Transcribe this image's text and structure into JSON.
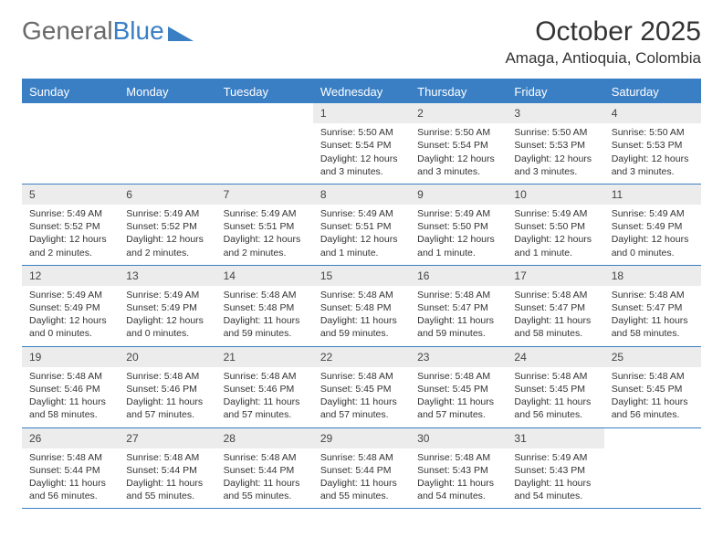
{
  "logo": {
    "text1": "General",
    "text2": "Blue"
  },
  "title": "October 2025",
  "location": "Amaga, Antioquia, Colombia",
  "colors": {
    "accent": "#3a7fc4",
    "header_bg": "#3a7fc4",
    "daynum_bg": "#ececec",
    "text": "#333333",
    "logo_gray": "#6a6a6a"
  },
  "day_names": [
    "Sunday",
    "Monday",
    "Tuesday",
    "Wednesday",
    "Thursday",
    "Friday",
    "Saturday"
  ],
  "weeks": [
    [
      null,
      null,
      null,
      {
        "n": "1",
        "sr": "5:50 AM",
        "ss": "5:54 PM",
        "dl": "12 hours and 3 minutes."
      },
      {
        "n": "2",
        "sr": "5:50 AM",
        "ss": "5:54 PM",
        "dl": "12 hours and 3 minutes."
      },
      {
        "n": "3",
        "sr": "5:50 AM",
        "ss": "5:53 PM",
        "dl": "12 hours and 3 minutes."
      },
      {
        "n": "4",
        "sr": "5:50 AM",
        "ss": "5:53 PM",
        "dl": "12 hours and 3 minutes."
      }
    ],
    [
      {
        "n": "5",
        "sr": "5:49 AM",
        "ss": "5:52 PM",
        "dl": "12 hours and 2 minutes."
      },
      {
        "n": "6",
        "sr": "5:49 AM",
        "ss": "5:52 PM",
        "dl": "12 hours and 2 minutes."
      },
      {
        "n": "7",
        "sr": "5:49 AM",
        "ss": "5:51 PM",
        "dl": "12 hours and 2 minutes."
      },
      {
        "n": "8",
        "sr": "5:49 AM",
        "ss": "5:51 PM",
        "dl": "12 hours and 1 minute."
      },
      {
        "n": "9",
        "sr": "5:49 AM",
        "ss": "5:50 PM",
        "dl": "12 hours and 1 minute."
      },
      {
        "n": "10",
        "sr": "5:49 AM",
        "ss": "5:50 PM",
        "dl": "12 hours and 1 minute."
      },
      {
        "n": "11",
        "sr": "5:49 AM",
        "ss": "5:49 PM",
        "dl": "12 hours and 0 minutes."
      }
    ],
    [
      {
        "n": "12",
        "sr": "5:49 AM",
        "ss": "5:49 PM",
        "dl": "12 hours and 0 minutes."
      },
      {
        "n": "13",
        "sr": "5:49 AM",
        "ss": "5:49 PM",
        "dl": "12 hours and 0 minutes."
      },
      {
        "n": "14",
        "sr": "5:48 AM",
        "ss": "5:48 PM",
        "dl": "11 hours and 59 minutes."
      },
      {
        "n": "15",
        "sr": "5:48 AM",
        "ss": "5:48 PM",
        "dl": "11 hours and 59 minutes."
      },
      {
        "n": "16",
        "sr": "5:48 AM",
        "ss": "5:47 PM",
        "dl": "11 hours and 59 minutes."
      },
      {
        "n": "17",
        "sr": "5:48 AM",
        "ss": "5:47 PM",
        "dl": "11 hours and 58 minutes."
      },
      {
        "n": "18",
        "sr": "5:48 AM",
        "ss": "5:47 PM",
        "dl": "11 hours and 58 minutes."
      }
    ],
    [
      {
        "n": "19",
        "sr": "5:48 AM",
        "ss": "5:46 PM",
        "dl": "11 hours and 58 minutes."
      },
      {
        "n": "20",
        "sr": "5:48 AM",
        "ss": "5:46 PM",
        "dl": "11 hours and 57 minutes."
      },
      {
        "n": "21",
        "sr": "5:48 AM",
        "ss": "5:46 PM",
        "dl": "11 hours and 57 minutes."
      },
      {
        "n": "22",
        "sr": "5:48 AM",
        "ss": "5:45 PM",
        "dl": "11 hours and 57 minutes."
      },
      {
        "n": "23",
        "sr": "5:48 AM",
        "ss": "5:45 PM",
        "dl": "11 hours and 57 minutes."
      },
      {
        "n": "24",
        "sr": "5:48 AM",
        "ss": "5:45 PM",
        "dl": "11 hours and 56 minutes."
      },
      {
        "n": "25",
        "sr": "5:48 AM",
        "ss": "5:45 PM",
        "dl": "11 hours and 56 minutes."
      }
    ],
    [
      {
        "n": "26",
        "sr": "5:48 AM",
        "ss": "5:44 PM",
        "dl": "11 hours and 56 minutes."
      },
      {
        "n": "27",
        "sr": "5:48 AM",
        "ss": "5:44 PM",
        "dl": "11 hours and 55 minutes."
      },
      {
        "n": "28",
        "sr": "5:48 AM",
        "ss": "5:44 PM",
        "dl": "11 hours and 55 minutes."
      },
      {
        "n": "29",
        "sr": "5:48 AM",
        "ss": "5:44 PM",
        "dl": "11 hours and 55 minutes."
      },
      {
        "n": "30",
        "sr": "5:48 AM",
        "ss": "5:43 PM",
        "dl": "11 hours and 54 minutes."
      },
      {
        "n": "31",
        "sr": "5:49 AM",
        "ss": "5:43 PM",
        "dl": "11 hours and 54 minutes."
      },
      null
    ]
  ],
  "labels": {
    "sunrise": "Sunrise:",
    "sunset": "Sunset:",
    "daylight": "Daylight:"
  }
}
